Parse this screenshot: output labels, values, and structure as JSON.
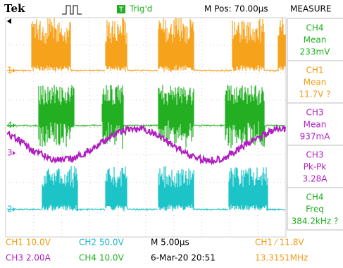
{
  "header": {
    "brand": "Tek",
    "trigger_icon": "T",
    "trigger_state": "Trig'd",
    "position": "M Pos: 70.00µs",
    "menu": "MEASURE"
  },
  "markers": [
    "1",
    "4",
    "3",
    "2"
  ],
  "measurements": [
    {
      "channel": "CH4",
      "type": "Mean",
      "value": "233mV"
    },
    {
      "channel": "CH1",
      "type": "Mean",
      "value": "11.7V ?"
    },
    {
      "channel": "CH3",
      "type": "Mean",
      "value": "937mA"
    },
    {
      "channel": "CH3",
      "type": "Pk-Pk",
      "value": "3.28A"
    },
    {
      "channel": "CH4",
      "type": "Freq",
      "value": "384.2kHz ?"
    }
  ],
  "footer": {
    "ch1": "CH1  10.0V",
    "ch2": "CH2  50.0V",
    "timebase": "M 5.00µs",
    "trigger": "CH1 ⁄ 11.8V",
    "ch3": "CH3  2.00A",
    "ch4": "CH4  10.0V",
    "date": "6-Mar-20 20:51",
    "freq": "13.3151MHz"
  }
}
